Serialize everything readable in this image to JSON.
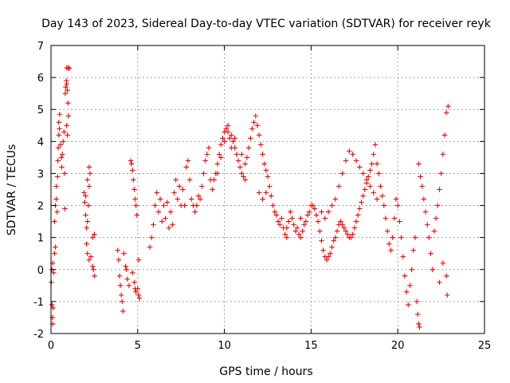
{
  "chart_data": {
    "type": "scatter",
    "title": "Day 143 of 2023, Sidereal Day-to-day VTEC variation (SDTVAR) for receiver reyk",
    "xlabel": "GPS time / hours",
    "ylabel": "SDTVAR / TECUs",
    "xlim": [
      0,
      25
    ],
    "ylim": [
      -2,
      7
    ],
    "xticks": [
      "0",
      "5",
      "10",
      "15",
      "20",
      "25"
    ],
    "yticks": [
      "-2",
      "-1",
      "0",
      "1",
      "2",
      "3",
      "4",
      "5",
      "6",
      "7"
    ],
    "grid": true,
    "marker": "plus",
    "color": "#ff0000",
    "series": [
      {
        "name": "SDTVAR",
        "points": [
          [
            0.02,
            -0.4
          ],
          [
            0.05,
            -1.1
          ],
          [
            0.08,
            -1.5
          ],
          [
            0.1,
            -1.7
          ],
          [
            0.12,
            -1.2
          ],
          [
            0.05,
            0.0
          ],
          [
            0.1,
            0.2
          ],
          [
            0.15,
            -0.1
          ],
          [
            0.2,
            0.5
          ],
          [
            0.25,
            0.7
          ],
          [
            0.2,
            1.5
          ],
          [
            0.25,
            2.0
          ],
          [
            0.3,
            2.2
          ],
          [
            0.35,
            1.8
          ],
          [
            0.3,
            2.6
          ],
          [
            0.38,
            2.9
          ],
          [
            0.4,
            3.4
          ],
          [
            0.42,
            3.8
          ],
          [
            0.45,
            4.2
          ],
          [
            0.45,
            4.6
          ],
          [
            0.5,
            4.85
          ],
          [
            0.48,
            4.4
          ],
          [
            0.55,
            3.9
          ],
          [
            0.6,
            3.5
          ],
          [
            0.62,
            3.2
          ],
          [
            0.65,
            3.6
          ],
          [
            0.7,
            4.0
          ],
          [
            0.75,
            4.3
          ],
          [
            0.8,
            1.9
          ],
          [
            0.78,
            3.0
          ],
          [
            0.82,
            5.5
          ],
          [
            0.85,
            5.7
          ],
          [
            0.88,
            5.9
          ],
          [
            0.9,
            5.8
          ],
          [
            0.95,
            5.6
          ],
          [
            0.98,
            5.2
          ],
          [
            1.0,
            4.8
          ],
          [
            0.9,
            4.5
          ],
          [
            0.95,
            4.2
          ],
          [
            0.9,
            6.3
          ],
          [
            1.0,
            6.3
          ],
          [
            1.05,
            6.28
          ],
          [
            1.9,
            2.4
          ],
          [
            1.95,
            2.1
          ],
          [
            2.0,
            1.7
          ],
          [
            2.05,
            1.3
          ],
          [
            2.1,
            1.5
          ],
          [
            2.15,
            2.0
          ],
          [
            2.2,
            2.6
          ],
          [
            2.25,
            3.0
          ],
          [
            2.2,
            3.2
          ],
          [
            2.1,
            2.8
          ],
          [
            2.0,
            2.3
          ],
          [
            2.05,
            0.8
          ],
          [
            2.1,
            0.5
          ],
          [
            2.2,
            0.3
          ],
          [
            2.3,
            0.4
          ],
          [
            2.4,
            0.1
          ],
          [
            2.45,
            0.0
          ],
          [
            2.5,
            -0.2
          ],
          [
            2.4,
            1.0
          ],
          [
            2.5,
            1.1
          ],
          [
            3.85,
            0.6
          ],
          [
            3.9,
            0.3
          ],
          [
            3.95,
            -0.2
          ],
          [
            4.0,
            -0.5
          ],
          [
            4.05,
            -0.8
          ],
          [
            4.1,
            -1.0
          ],
          [
            4.15,
            -1.3
          ],
          [
            4.2,
            0.5
          ],
          [
            4.3,
            0.1
          ],
          [
            4.35,
            0.0
          ],
          [
            4.4,
            -0.3
          ],
          [
            4.5,
            -0.5
          ],
          [
            4.6,
            3.4
          ],
          [
            4.65,
            3.3
          ],
          [
            4.7,
            3.1
          ],
          [
            4.75,
            2.8
          ],
          [
            4.8,
            2.5
          ],
          [
            4.85,
            2.2
          ],
          [
            4.9,
            2.0
          ],
          [
            4.95,
            1.7
          ],
          [
            4.7,
            -0.1
          ],
          [
            4.8,
            -0.4
          ],
          [
            4.85,
            -0.6
          ],
          [
            4.9,
            -0.7
          ],
          [
            5.0,
            -0.6
          ],
          [
            5.05,
            -0.8
          ],
          [
            5.1,
            -0.9
          ],
          [
            5.05,
            0.3
          ],
          [
            5.7,
            0.7
          ],
          [
            5.8,
            1.0
          ],
          [
            5.9,
            1.4
          ],
          [
            6.0,
            2.0
          ],
          [
            6.1,
            2.4
          ],
          [
            6.2,
            1.8
          ],
          [
            6.3,
            2.2
          ],
          [
            6.4,
            1.5
          ],
          [
            6.5,
            2.0
          ],
          [
            6.6,
            1.6
          ],
          [
            6.7,
            2.1
          ],
          [
            6.8,
            1.3
          ],
          [
            6.9,
            1.8
          ],
          [
            7.0,
            1.4
          ],
          [
            7.1,
            2.4
          ],
          [
            7.2,
            2.8
          ],
          [
            7.3,
            2.2
          ],
          [
            7.4,
            2.6
          ],
          [
            7.5,
            2.0
          ],
          [
            7.6,
            2.5
          ],
          [
            7.7,
            2.0
          ],
          [
            7.8,
            3.2
          ],
          [
            7.9,
            3.4
          ],
          [
            8.0,
            2.8
          ],
          [
            8.1,
            2.2
          ],
          [
            8.2,
            2.0
          ],
          [
            8.3,
            1.8
          ],
          [
            8.4,
            2.0
          ],
          [
            8.5,
            2.3
          ],
          [
            8.6,
            2.2
          ],
          [
            8.7,
            2.6
          ],
          [
            8.8,
            3.0
          ],
          [
            8.9,
            3.4
          ],
          [
            9.0,
            3.6
          ],
          [
            9.1,
            3.8
          ],
          [
            9.2,
            2.8
          ],
          [
            9.3,
            2.5
          ],
          [
            9.4,
            2.8
          ],
          [
            9.5,
            3.0
          ],
          [
            9.6,
            3.3
          ],
          [
            9.7,
            3.6
          ],
          [
            9.8,
            3.9
          ],
          [
            9.9,
            4.1
          ],
          [
            10.0,
            4.3
          ],
          [
            10.1,
            4.4
          ],
          [
            10.2,
            4.3
          ],
          [
            10.3,
            4.1
          ],
          [
            10.4,
            4.2
          ],
          [
            10.5,
            4.0
          ],
          [
            10.6,
            3.8
          ],
          [
            10.7,
            3.6
          ],
          [
            10.8,
            3.4
          ],
          [
            10.9,
            3.2
          ],
          [
            11.0,
            3.0
          ],
          [
            11.1,
            2.9
          ],
          [
            11.2,
            2.8
          ],
          [
            11.3,
            3.5
          ],
          [
            11.4,
            3.8
          ],
          [
            11.5,
            4.1
          ],
          [
            11.6,
            4.4
          ],
          [
            11.7,
            4.6
          ],
          [
            11.8,
            4.8
          ],
          [
            11.9,
            4.5
          ],
          [
            12.0,
            4.2
          ],
          [
            12.1,
            3.9
          ],
          [
            12.2,
            3.6
          ],
          [
            12.3,
            3.3
          ],
          [
            12.4,
            3.1
          ],
          [
            12.5,
            2.9
          ],
          [
            12.6,
            2.6
          ],
          [
            12.7,
            2.3
          ],
          [
            12.8,
            2.0
          ],
          [
            12.9,
            1.8
          ],
          [
            13.0,
            1.7
          ],
          [
            13.1,
            1.5
          ],
          [
            13.2,
            1.4
          ],
          [
            13.3,
            1.6
          ],
          [
            13.4,
            1.3
          ],
          [
            13.5,
            1.1
          ],
          [
            13.6,
            1.3
          ],
          [
            13.7,
            1.5
          ],
          [
            13.8,
            1.8
          ],
          [
            13.9,
            1.6
          ],
          [
            14.0,
            1.4
          ],
          [
            14.1,
            1.2
          ],
          [
            14.2,
            1.3
          ],
          [
            14.3,
            1.1
          ],
          [
            14.4,
            1.0
          ],
          [
            14.5,
            1.2
          ],
          [
            14.6,
            1.4
          ],
          [
            14.7,
            1.5
          ],
          [
            14.8,
            1.7
          ],
          [
            14.9,
            1.8
          ],
          [
            15.0,
            2.0
          ],
          [
            15.1,
            2.0
          ],
          [
            15.2,
            1.9
          ],
          [
            15.3,
            1.7
          ],
          [
            15.4,
            1.5
          ],
          [
            15.5,
            1.2
          ],
          [
            15.6,
            0.9
          ],
          [
            15.7,
            0.6
          ],
          [
            15.8,
            0.4
          ],
          [
            15.9,
            0.3
          ],
          [
            16.0,
            0.4
          ],
          [
            16.1,
            0.5
          ],
          [
            16.2,
            0.7
          ],
          [
            16.3,
            0.9
          ],
          [
            16.4,
            1.0
          ],
          [
            16.5,
            1.2
          ],
          [
            16.6,
            1.4
          ],
          [
            16.7,
            1.5
          ],
          [
            16.8,
            1.4
          ],
          [
            16.9,
            1.3
          ],
          [
            17.0,
            1.2
          ],
          [
            17.1,
            1.1
          ],
          [
            17.2,
            1.0
          ],
          [
            17.3,
            1.0
          ],
          [
            17.4,
            1.1
          ],
          [
            17.5,
            1.3
          ],
          [
            17.6,
            1.5
          ],
          [
            17.7,
            1.7
          ],
          [
            17.8,
            1.9
          ],
          [
            17.9,
            2.1
          ],
          [
            18.0,
            2.3
          ],
          [
            18.1,
            2.5
          ],
          [
            18.2,
            2.7
          ],
          [
            18.3,
            2.9
          ],
          [
            18.4,
            3.1
          ],
          [
            18.5,
            3.3
          ],
          [
            18.6,
            3.6
          ],
          [
            18.7,
            3.9
          ],
          [
            18.8,
            3.3
          ],
          [
            18.9,
            3.0
          ],
          [
            19.0,
            2.6
          ],
          [
            19.1,
            2.3
          ],
          [
            19.2,
            2.0
          ],
          [
            19.3,
            1.6
          ],
          [
            19.4,
            1.2
          ],
          [
            19.5,
            0.8
          ],
          [
            19.6,
            0.6
          ],
          [
            19.7,
            1.0
          ],
          [
            19.8,
            1.6
          ],
          [
            19.9,
            2.2
          ],
          [
            20.0,
            2.0
          ],
          [
            20.1,
            1.5
          ],
          [
            20.2,
            1.0
          ],
          [
            20.3,
            0.4
          ],
          [
            20.4,
            -0.2
          ],
          [
            20.5,
            -0.7
          ],
          [
            20.6,
            -1.1
          ],
          [
            20.7,
            -0.5
          ],
          [
            20.8,
            0.0
          ],
          [
            20.9,
            0.6
          ],
          [
            21.0,
            1.0
          ],
          [
            21.1,
            -1.0
          ],
          [
            21.15,
            -1.4
          ],
          [
            21.2,
            -1.7
          ],
          [
            21.25,
            -1.8
          ],
          [
            21.2,
            3.3
          ],
          [
            21.3,
            2.9
          ],
          [
            21.4,
            2.6
          ],
          [
            21.5,
            2.2
          ],
          [
            21.6,
            1.8
          ],
          [
            21.7,
            1.4
          ],
          [
            21.8,
            1.0
          ],
          [
            21.9,
            0.5
          ],
          [
            22.0,
            0.0
          ],
          [
            22.1,
            1.2
          ],
          [
            22.2,
            1.6
          ],
          [
            22.3,
            2.0
          ],
          [
            22.4,
            2.5
          ],
          [
            22.5,
            3.0
          ],
          [
            22.6,
            3.6
          ],
          [
            22.7,
            4.2
          ],
          [
            22.8,
            4.9
          ],
          [
            22.9,
            5.1
          ],
          [
            22.4,
            -0.4
          ],
          [
            22.6,
            0.2
          ],
          [
            22.8,
            -0.2
          ],
          [
            22.85,
            -0.8
          ],
          [
            10.0,
            4.0
          ],
          [
            10.2,
            4.5
          ],
          [
            10.4,
            3.8
          ],
          [
            10.6,
            4.1
          ],
          [
            9.8,
            3.5
          ],
          [
            9.6,
            3.0
          ],
          [
            11.2,
            3.3
          ],
          [
            11.0,
            3.6
          ],
          [
            12.0,
            2.4
          ],
          [
            12.2,
            2.2
          ],
          [
            12.4,
            2.4
          ],
          [
            13.6,
            1.0
          ],
          [
            14.4,
            1.6
          ],
          [
            15.6,
            1.8
          ],
          [
            15.8,
            1.6
          ],
          [
            16.0,
            1.8
          ],
          [
            16.2,
            2.0
          ],
          [
            16.4,
            2.2
          ],
          [
            16.6,
            2.6
          ],
          [
            16.8,
            3.0
          ],
          [
            17.0,
            3.4
          ],
          [
            17.2,
            3.7
          ],
          [
            17.4,
            3.6
          ],
          [
            17.6,
            3.4
          ],
          [
            17.8,
            3.2
          ],
          [
            18.0,
            3.0
          ],
          [
            18.2,
            2.8
          ],
          [
            18.4,
            2.6
          ],
          [
            18.6,
            2.4
          ],
          [
            18.8,
            2.2
          ]
        ]
      }
    ]
  }
}
